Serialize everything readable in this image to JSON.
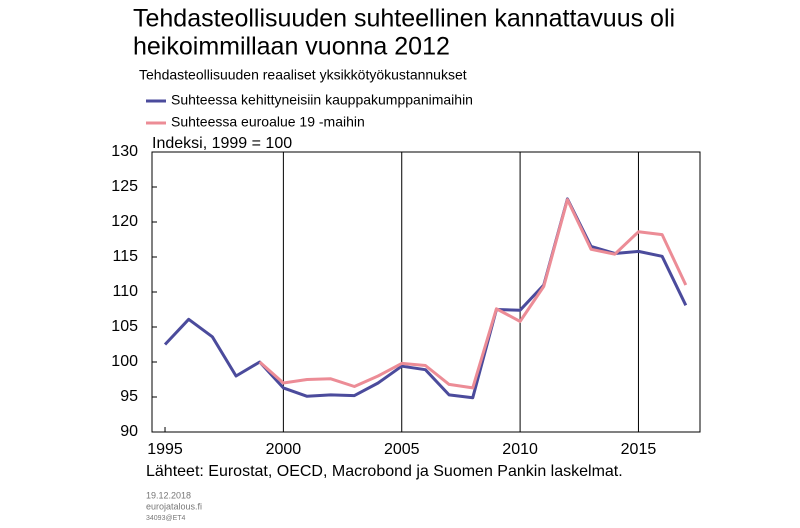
{
  "chart_data": {
    "type": "line",
    "title": [
      "Tehdasteollisuuden suhteellinen kannattavuus oli",
      "heikoimmillaan vuonna 2012"
    ],
    "subtitle": "Tehdasteollisuuden reaaliset yksikkötyökustannukset",
    "y_label": "Indeksi, 1999 = 100",
    "source": "Lähteet: Eurostat, OECD, Macrobond ja Suomen Pankin laskelmat.",
    "footer": [
      "19.12.2018",
      "eurojatalous.fi",
      "34093@ET4"
    ],
    "x": [
      1995,
      1996,
      1997,
      1998,
      1999,
      2000,
      2001,
      2002,
      2003,
      2004,
      2005,
      2006,
      2007,
      2008,
      2009,
      2010,
      2011,
      2012,
      2013,
      2014,
      2015,
      2016,
      2017
    ],
    "series": [
      {
        "name": "Suhteessa kehittyneisiin kauppakumppanimaihin",
        "color": "#4b4b9c",
        "values": [
          102.5,
          106.1,
          103.6,
          98,
          100,
          96.3,
          95.1,
          95.3,
          95.2,
          97,
          99.4,
          98.9,
          95.3,
          94.9,
          107.5,
          107.4,
          111,
          123.3,
          116.5,
          115.5,
          115.8,
          115.1,
          108.1
        ]
      },
      {
        "name": "Suhteessa euroalue 19 -maihin",
        "color": "#ec8c96",
        "values": [
          null,
          null,
          null,
          null,
          100,
          97,
          97.5,
          97.6,
          96.5,
          98,
          99.8,
          99.5,
          96.8,
          96.3,
          107.6,
          105.8,
          110.8,
          123.2,
          116.1,
          115.4,
          118.6,
          118.2,
          111
        ]
      }
    ],
    "xlim": [
      1994.45,
      2017.6
    ],
    "xticks": [
      1995,
      2000,
      2005,
      2010,
      2015
    ],
    "ylim": [
      90,
      130
    ],
    "yticks": [
      90,
      95,
      100,
      105,
      110,
      115,
      120,
      125,
      130
    ],
    "grid": "x"
  }
}
